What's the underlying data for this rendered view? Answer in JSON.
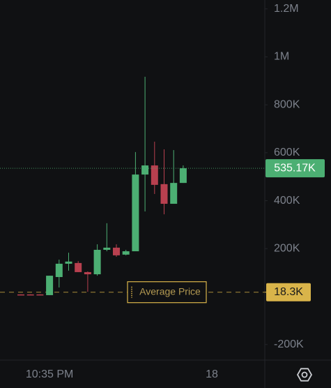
{
  "chart_data": {
    "type": "candlestick",
    "categories": [
      null,
      null,
      null,
      "10:35 PM",
      null,
      null,
      null,
      null,
      null,
      null,
      null,
      null,
      null,
      null,
      null,
      null,
      null,
      null,
      null,
      null,
      "18"
    ],
    "open": [
      9000,
      9000,
      9000,
      6000,
      81500,
      137000,
      140000,
      102000,
      93000,
      195000,
      204000,
      175000,
      189000,
      509000,
      547000,
      469000,
      387000,
      474000,
      null,
      null,
      null
    ],
    "high": [
      9500,
      9500,
      9500,
      87000,
      154000,
      183000,
      148000,
      105000,
      218000,
      306000,
      218000,
      195000,
      603000,
      917000,
      646000,
      614000,
      611000,
      547000,
      null,
      null,
      null
    ],
    "low": [
      8000,
      8000,
      8000,
      6000,
      38000,
      108000,
      102000,
      20000,
      87000,
      189000,
      166000,
      172000,
      189000,
      355000,
      428000,
      343000,
      387000,
      474000,
      null,
      null,
      null
    ],
    "close": [
      8500,
      8500,
      8500,
      87000,
      137000,
      146000,
      102000,
      93000,
      195000,
      204000,
      172000,
      189000,
      509000,
      547000,
      466000,
      387000,
      474000,
      535170,
      null,
      null,
      null
    ],
    "up_color": "#4caf73",
    "down_color": "#b8404f",
    "ylim": [
      -262000,
      1237000
    ],
    "yticks": [
      {
        "value": 1200000,
        "label": "1.2M"
      },
      {
        "value": 1000000,
        "label": "1M"
      },
      {
        "value": 800000,
        "label": "800K"
      },
      {
        "value": 600000,
        "label": "600K"
      },
      {
        "value": 400000,
        "label": "400K"
      },
      {
        "value": 200000,
        "label": "200K"
      },
      {
        "value": -200000,
        "label": "-200K"
      }
    ],
    "last_price": {
      "value": 535170,
      "value_label": "535.17K",
      "color": "#4caf73"
    },
    "average_price": {
      "name": "Average Price",
      "value": 18300,
      "value_label": "18.3K",
      "color": "#d9b44a"
    }
  }
}
